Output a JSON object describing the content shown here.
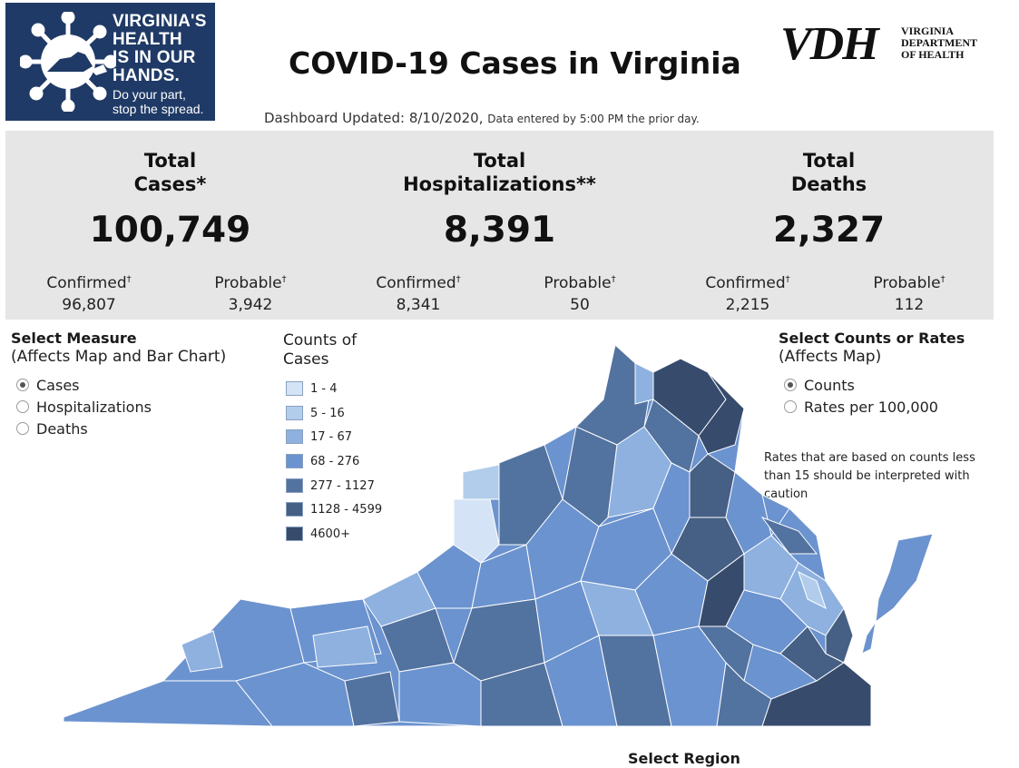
{
  "logo_left": {
    "lines": [
      "VIRGINIA'S",
      "HEALTH",
      "IS IN OUR",
      "HANDS."
    ],
    "tagline": [
      "Do your part,",
      "stop the spread."
    ],
    "icon": "virus-icon"
  },
  "title": "COVID-19 Cases in Virginia",
  "vdh_logo": {
    "mark": "VDH",
    "lines": [
      "VIRGINIA",
      "DEPARTMENT",
      "OF HEALTH"
    ]
  },
  "updated": {
    "main": "Dashboard Updated: 8/10/2020,",
    "note": "Data entered by 5:00 PM the prior day."
  },
  "kpis": [
    {
      "title_lines": [
        "Total",
        "Cases*"
      ],
      "total": "100,749",
      "confirmed_label": "Confirmed",
      "confirmed_value": "96,807",
      "probable_label": "Probable",
      "probable_value": "3,942"
    },
    {
      "title_lines": [
        "Total",
        "Hospitalizations**"
      ],
      "total": "8,391",
      "confirmed_label": "Confirmed",
      "confirmed_value": "8,341",
      "probable_label": "Probable",
      "probable_value": "50"
    },
    {
      "title_lines": [
        "Total",
        "Deaths"
      ],
      "total": "2,327",
      "confirmed_label": "Confirmed",
      "confirmed_value": "2,215",
      "probable_label": "Probable",
      "probable_value": "112"
    }
  ],
  "dagger": "†",
  "measure": {
    "title": "Select Measure",
    "subtitle": "(Affects Map and Bar Chart)",
    "options": [
      {
        "label": "Cases",
        "selected": true
      },
      {
        "label": "Hospitalizations",
        "selected": false
      },
      {
        "label": "Deaths",
        "selected": false
      }
    ]
  },
  "legend": {
    "title_lines": [
      "Counts of",
      "Cases"
    ],
    "items": [
      {
        "label": "1 - 4",
        "color": "#d4e3f5"
      },
      {
        "label": "5 - 16",
        "color": "#b2cdec"
      },
      {
        "label": "17 - 67",
        "color": "#8eb1df"
      },
      {
        "label": "68 - 276",
        "color": "#6b93cf"
      },
      {
        "label": "277 - 1127",
        "color": "#52729f"
      },
      {
        "label": "1128 - 4599",
        "color": "#465f85"
      },
      {
        "label": "4600+",
        "color": "#374b6c"
      }
    ]
  },
  "counts_rates": {
    "title": "Select Counts or Rates",
    "subtitle": "(Affects Map)",
    "options": [
      {
        "label": "Counts",
        "selected": true
      },
      {
        "label": "Rates per 100,000",
        "selected": false
      }
    ]
  },
  "rates_note": "Rates that are based on counts less than 15 should be interpreted with caution",
  "region_label": "Select Region"
}
